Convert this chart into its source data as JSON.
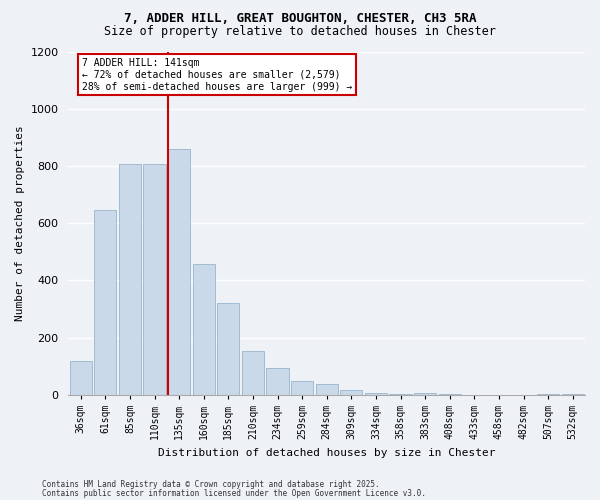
{
  "title": "7, ADDER HILL, GREAT BOUGHTON, CHESTER, CH3 5RA",
  "subtitle": "Size of property relative to detached houses in Chester",
  "xlabel": "Distribution of detached houses by size in Chester",
  "ylabel": "Number of detached properties",
  "bar_color": "#c9d9ea",
  "bar_edge_color": "#9ab4cc",
  "categories": [
    "36sqm",
    "61sqm",
    "85sqm",
    "110sqm",
    "135sqm",
    "160sqm",
    "185sqm",
    "210sqm",
    "234sqm",
    "259sqm",
    "284sqm",
    "309sqm",
    "334sqm",
    "358sqm",
    "383sqm",
    "408sqm",
    "433sqm",
    "458sqm",
    "482sqm",
    "507sqm",
    "532sqm"
  ],
  "bar_values": [
    120,
    645,
    808,
    808,
    860,
    456,
    320,
    155,
    93,
    50,
    38,
    18,
    8,
    3,
    8,
    3,
    1,
    1,
    1,
    3,
    2
  ],
  "ylim": [
    0,
    1200
  ],
  "yticks": [
    0,
    200,
    400,
    600,
    800,
    1000,
    1200
  ],
  "vline_color": "#cc0000",
  "vline_bar_index": 4,
  "annotation_title": "7 ADDER HILL: 141sqm",
  "annotation_line1": "← 72% of detached houses are smaller (2,579)",
  "annotation_line2": "28% of semi-detached houses are larger (999) →",
  "annotation_box_color": "#cc0000",
  "footnote1": "Contains HM Land Registry data © Crown copyright and database right 2025.",
  "footnote2": "Contains public sector information licensed under the Open Government Licence v3.0.",
  "bg_color": "#eef2f7",
  "grid_color": "#ffffff",
  "fig_width": 6.0,
  "fig_height": 5.0
}
